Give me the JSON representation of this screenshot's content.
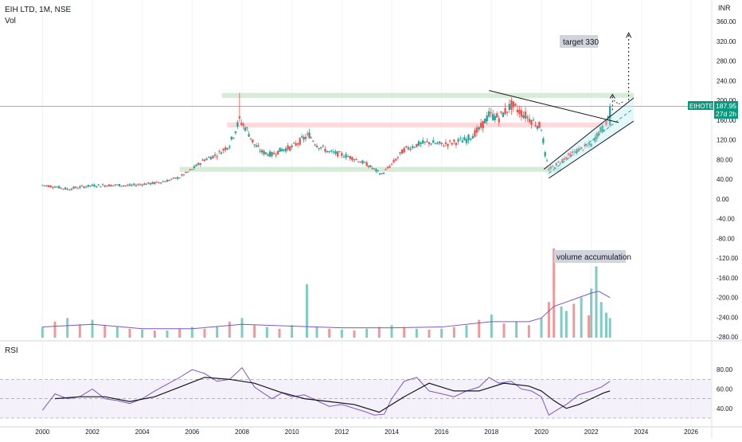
{
  "header": {
    "symbol_line": "EIH LTD, 1M, NSE",
    "vol_label": "Vol",
    "rsi_label": "RSI",
    "currency": "INR"
  },
  "price_badge": {
    "ticker": "EIHOTEL",
    "price": "187.95",
    "countdown": "27d 2h"
  },
  "annotations": {
    "target": "target 330",
    "volume": "volume accumulation"
  },
  "colors": {
    "up": "#26a69a",
    "down": "#ef5350",
    "badge": "#089981",
    "rsi": "#7e57c2",
    "zone_green": "#c8e6c9",
    "zone_red": "#ffcdd2"
  },
  "chart_data": [
    {
      "type": "candlestick",
      "title": "EIH LTD, 1M, NSE",
      "y_unit": "INR",
      "y_ticks": [
        "360.00",
        "320.00",
        "280.00",
        "240.00",
        "200.00",
        "160.00",
        "120.00",
        "80.00",
        "40.00",
        "0.00",
        "-40.00",
        "-80.00",
        "-120.00",
        "-160.00",
        "-200.00",
        "-240.00",
        "-280.00"
      ],
      "ylim": [
        -280,
        360
      ],
      "x_ticks": [
        "2000",
        "2002",
        "2004",
        "2006",
        "2008",
        "2010",
        "2012",
        "2014",
        "2016",
        "2018",
        "2020",
        "2022",
        "2024",
        "2026"
      ],
      "xlim": [
        1999.0,
        2027.5
      ],
      "last_price": 187.95,
      "series": [
        {
          "name": "close",
          "points": [
            [
              2000.0,
              28
            ],
            [
              2000.5,
              25
            ],
            [
              2001.0,
              20
            ],
            [
              2001.5,
              24
            ],
            [
              2002.0,
              27
            ],
            [
              2003.0,
              28
            ],
            [
              2003.5,
              27
            ],
            [
              2004.0,
              30
            ],
            [
              2004.5,
              32
            ],
            [
              2005.0,
              37
            ],
            [
              2005.5,
              44
            ],
            [
              2006.0,
              60
            ],
            [
              2006.5,
              80
            ],
            [
              2007.0,
              90
            ],
            [
              2007.5,
              110
            ],
            [
              2007.9,
              160
            ],
            [
              2008.2,
              140
            ],
            [
              2008.5,
              110
            ],
            [
              2008.8,
              95
            ],
            [
              2009.2,
              90
            ],
            [
              2009.6,
              100
            ],
            [
              2010.0,
              105
            ],
            [
              2010.4,
              120
            ],
            [
              2010.7,
              130
            ],
            [
              2011.0,
              110
            ],
            [
              2011.5,
              95
            ],
            [
              2012.0,
              90
            ],
            [
              2012.5,
              82
            ],
            [
              2013.0,
              70
            ],
            [
              2013.3,
              60
            ],
            [
              2013.6,
              50
            ],
            [
              2014.0,
              70
            ],
            [
              2014.5,
              100
            ],
            [
              2015.0,
              110
            ],
            [
              2015.5,
              115
            ],
            [
              2016.0,
              110
            ],
            [
              2016.5,
              115
            ],
            [
              2017.0,
              120
            ],
            [
              2017.5,
              140
            ],
            [
              2017.9,
              170
            ],
            [
              2018.3,
              165
            ],
            [
              2018.8,
              190
            ],
            [
              2019.2,
              175
            ],
            [
              2019.6,
              160
            ],
            [
              2020.0,
              145
            ],
            [
              2020.15,
              90
            ],
            [
              2020.3,
              60
            ],
            [
              2020.6,
              70
            ],
            [
              2021.0,
              85
            ],
            [
              2021.5,
              100
            ],
            [
              2022.0,
              110
            ],
            [
              2022.3,
              135
            ],
            [
              2022.6,
              150
            ],
            [
              2022.75,
              187.95
            ]
          ]
        }
      ],
      "zones": [
        {
          "name": "resistance",
          "from": 205,
          "to": 215,
          "x_from": 2007.2,
          "x_to": 2023.7
        },
        {
          "name": "mid",
          "from": 145,
          "to": 155,
          "x_from": 2007.4,
          "x_to": 2022.8
        },
        {
          "name": "support",
          "from": 55,
          "to": 65,
          "x_from": 2005.5,
          "x_to": 2020.8
        }
      ]
    },
    {
      "type": "bar",
      "title": "Vol",
      "bars": [
        {
          "x": 2000.0,
          "v": 12
        },
        {
          "x": 2000.5,
          "v": 18
        },
        {
          "x": 2001.0,
          "v": 22
        },
        {
          "x": 2001.5,
          "v": 15
        },
        {
          "x": 2002.0,
          "v": 20
        },
        {
          "x": 2002.5,
          "v": 14
        },
        {
          "x": 2003.0,
          "v": 12
        },
        {
          "x": 2003.5,
          "v": 10
        },
        {
          "x": 2004.0,
          "v": 9
        },
        {
          "x": 2004.5,
          "v": 8
        },
        {
          "x": 2005.0,
          "v": 8
        },
        {
          "x": 2005.5,
          "v": 10
        },
        {
          "x": 2006.0,
          "v": 12
        },
        {
          "x": 2006.5,
          "v": 10
        },
        {
          "x": 2007.0,
          "v": 12
        },
        {
          "x": 2007.5,
          "v": 18
        },
        {
          "x": 2008.0,
          "v": 22
        },
        {
          "x": 2008.5,
          "v": 14
        },
        {
          "x": 2009.0,
          "v": 12
        },
        {
          "x": 2009.5,
          "v": 10
        },
        {
          "x": 2010.0,
          "v": 14
        },
        {
          "x": 2010.6,
          "v": 60
        },
        {
          "x": 2011.0,
          "v": 12
        },
        {
          "x": 2011.5,
          "v": 10
        },
        {
          "x": 2012.0,
          "v": 9
        },
        {
          "x": 2012.5,
          "v": 8
        },
        {
          "x": 2013.0,
          "v": 10
        },
        {
          "x": 2013.5,
          "v": 12
        },
        {
          "x": 2014.0,
          "v": 14
        },
        {
          "x": 2014.5,
          "v": 12
        },
        {
          "x": 2015.0,
          "v": 10
        },
        {
          "x": 2015.5,
          "v": 9
        },
        {
          "x": 2016.0,
          "v": 10
        },
        {
          "x": 2016.5,
          "v": 12
        },
        {
          "x": 2017.0,
          "v": 14
        },
        {
          "x": 2017.5,
          "v": 20
        },
        {
          "x": 2018.0,
          "v": 26
        },
        {
          "x": 2018.5,
          "v": 16
        },
        {
          "x": 2019.0,
          "v": 18
        },
        {
          "x": 2019.5,
          "v": 14
        },
        {
          "x": 2020.0,
          "v": 22
        },
        {
          "x": 2020.3,
          "v": 40
        },
        {
          "x": 2020.5,
          "v": 100
        },
        {
          "x": 2020.8,
          "v": 35
        },
        {
          "x": 2021.0,
          "v": 30
        },
        {
          "x": 2021.3,
          "v": 38
        },
        {
          "x": 2021.6,
          "v": 45
        },
        {
          "x": 2021.9,
          "v": 25
        },
        {
          "x": 2022.0,
          "v": 55
        },
        {
          "x": 2022.2,
          "v": 80
        },
        {
          "x": 2022.4,
          "v": 40
        },
        {
          "x": 2022.6,
          "v": 28
        },
        {
          "x": 2022.75,
          "v": 22
        }
      ],
      "ma": [
        [
          2000.0,
          12
        ],
        [
          2002.0,
          15
        ],
        [
          2004.0,
          10
        ],
        [
          2006.0,
          10
        ],
        [
          2008.0,
          15
        ],
        [
          2010.0,
          13
        ],
        [
          2012.0,
          11
        ],
        [
          2014.0,
          11
        ],
        [
          2016.0,
          12
        ],
        [
          2018.0,
          18
        ],
        [
          2019.5,
          18
        ],
        [
          2020.0,
          22
        ],
        [
          2020.5,
          35
        ],
        [
          2021.0,
          40
        ],
        [
          2021.5,
          45
        ],
        [
          2022.0,
          50
        ],
        [
          2022.3,
          52
        ],
        [
          2022.75,
          45
        ]
      ],
      "vmax": 100
    },
    {
      "type": "line",
      "title": "RSI",
      "y_ticks": [
        "80.00",
        "60.00",
        "40.00"
      ],
      "ylim": [
        25,
        90
      ],
      "bands": [
        30,
        50,
        70
      ],
      "series": [
        {
          "name": "rsi",
          "points": [
            [
              2000.0,
              38
            ],
            [
              2000.5,
              55
            ],
            [
              2001.0,
              50
            ],
            [
              2001.5,
              52
            ],
            [
              2002.0,
              60
            ],
            [
              2002.5,
              50
            ],
            [
              2003.0,
              48
            ],
            [
              2003.5,
              45
            ],
            [
              2004.0,
              50
            ],
            [
              2004.5,
              58
            ],
            [
              2005.0,
              65
            ],
            [
              2005.5,
              72
            ],
            [
              2006.0,
              80
            ],
            [
              2006.5,
              76
            ],
            [
              2007.0,
              68
            ],
            [
              2007.5,
              70
            ],
            [
              2008.0,
              82
            ],
            [
              2008.5,
              62
            ],
            [
              2008.9,
              55
            ],
            [
              2009.2,
              50
            ],
            [
              2009.6,
              56
            ],
            [
              2010.0,
              52
            ],
            [
              2010.5,
              54
            ],
            [
              2011.0,
              48
            ],
            [
              2011.5,
              42
            ],
            [
              2012.0,
              44
            ],
            [
              2012.5,
              40
            ],
            [
              2013.0,
              36
            ],
            [
              2013.3,
              33
            ],
            [
              2013.7,
              34
            ],
            [
              2014.0,
              50
            ],
            [
              2014.5,
              68
            ],
            [
              2015.0,
              72
            ],
            [
              2015.5,
              58
            ],
            [
              2016.0,
              55
            ],
            [
              2016.5,
              52
            ],
            [
              2017.0,
              58
            ],
            [
              2017.5,
              62
            ],
            [
              2017.9,
              72
            ],
            [
              2018.3,
              66
            ],
            [
              2018.8,
              68
            ],
            [
              2019.2,
              60
            ],
            [
              2019.6,
              58
            ],
            [
              2020.0,
              52
            ],
            [
              2020.3,
              33
            ],
            [
              2020.6,
              38
            ],
            [
              2021.0,
              44
            ],
            [
              2021.5,
              54
            ],
            [
              2022.0,
              58
            ],
            [
              2022.4,
              62
            ],
            [
              2022.75,
              68
            ]
          ]
        },
        {
          "name": "rsi_ma",
          "points": [
            [
              2000.5,
              50
            ],
            [
              2001.5,
              52
            ],
            [
              2002.5,
              52
            ],
            [
              2003.5,
              47
            ],
            [
              2004.5,
              52
            ],
            [
              2005.5,
              62
            ],
            [
              2006.5,
              72
            ],
            [
              2007.5,
              70
            ],
            [
              2008.5,
              66
            ],
            [
              2009.5,
              57
            ],
            [
              2010.5,
              50
            ],
            [
              2011.5,
              47
            ],
            [
              2012.5,
              44
            ],
            [
              2013.5,
              36
            ],
            [
              2014.5,
              52
            ],
            [
              2015.5,
              66
            ],
            [
              2016.5,
              58
            ],
            [
              2017.5,
              58
            ],
            [
              2018.5,
              66
            ],
            [
              2019.5,
              63
            ],
            [
              2020.0,
              58
            ],
            [
              2020.5,
              48
            ],
            [
              2021.0,
              40
            ],
            [
              2021.5,
              44
            ],
            [
              2022.0,
              50
            ],
            [
              2022.5,
              56
            ],
            [
              2022.75,
              58
            ]
          ]
        }
      ]
    }
  ]
}
